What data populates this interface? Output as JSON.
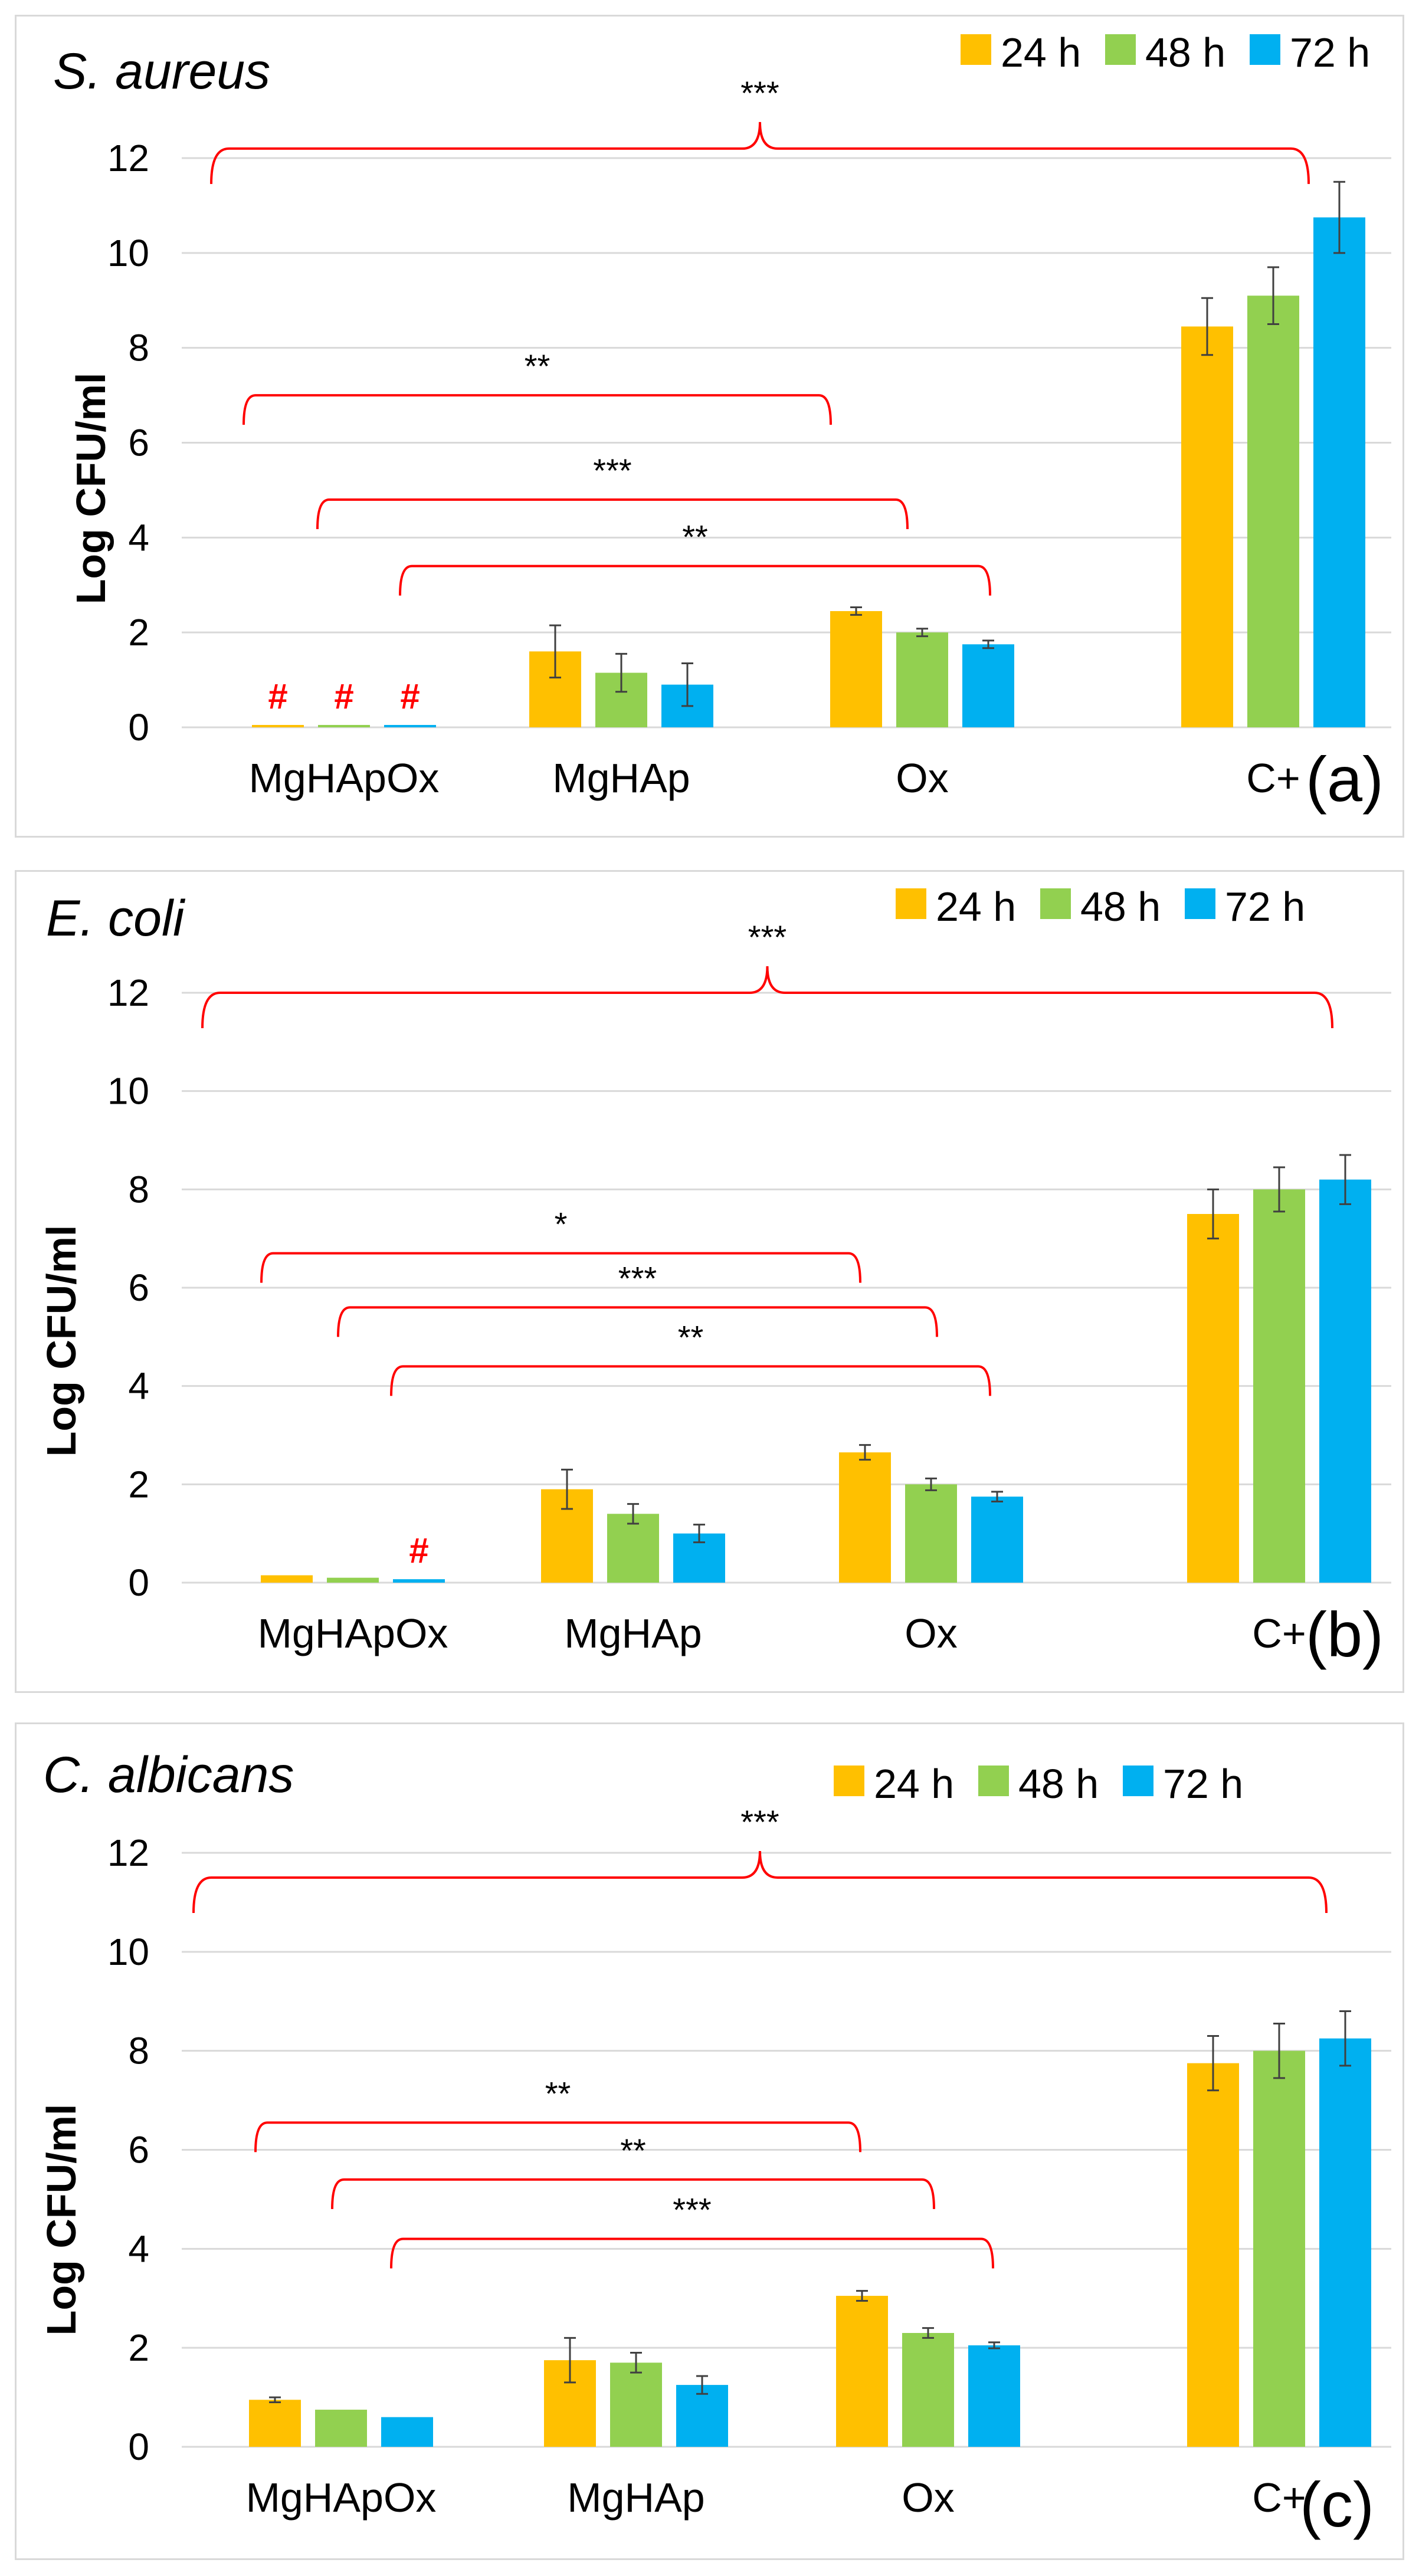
{
  "colors": {
    "24h": "#ffc000",
    "48h": "#92d050",
    "72h": "#00b0f0"
  },
  "legend": [
    "24 h",
    "48 h",
    "72 h"
  ],
  "chart_data": [
    {
      "type": "bar",
      "panel_label": "(a)",
      "title": "S. aureus",
      "ylabel": "Log CFU/ml",
      "xlabel": "",
      "ylim": [
        0,
        12
      ],
      "yticks": [
        "0",
        "2",
        "4",
        "6",
        "8",
        "10",
        "12"
      ],
      "categories": [
        "MgHApOx",
        "MgHAp",
        "Ox",
        "C+"
      ],
      "series": [
        {
          "name": "24 h",
          "values": [
            0.05,
            1.6,
            2.45,
            8.45
          ],
          "errors": [
            0,
            0.55,
            0.08,
            0.6
          ]
        },
        {
          "name": "48 h",
          "values": [
            0.05,
            1.15,
            2.0,
            9.1
          ],
          "errors": [
            0,
            0.4,
            0.08,
            0.6
          ]
        },
        {
          "name": "72 h",
          "values": [
            0.05,
            0.9,
            1.75,
            10.75
          ],
          "errors": [
            0,
            0.45,
            0.08,
            0.75
          ]
        }
      ],
      "hash_marks": [
        {
          "category": 0,
          "series": 0,
          "label": "#"
        },
        {
          "category": 0,
          "series": 1,
          "label": "#"
        },
        {
          "category": 0,
          "series": 2,
          "label": "#"
        }
      ],
      "significance": [
        {
          "label": "***",
          "level": 12.2
        },
        {
          "label": "**",
          "level": 7.0
        },
        {
          "label": "***",
          "level": 4.8
        },
        {
          "label": "**",
          "level": 3.4
        }
      ]
    },
    {
      "type": "bar",
      "panel_label": "(b)",
      "title": "E. coli",
      "ylabel": "Log CFU/ml",
      "xlabel": "",
      "ylim": [
        0,
        12
      ],
      "yticks": [
        "0",
        "2",
        "4",
        "6",
        "8",
        "10",
        "12"
      ],
      "categories": [
        "MgHApOx",
        "MgHAp",
        "Ox",
        "C+"
      ],
      "series": [
        {
          "name": "24 h",
          "values": [
            0.15,
            1.9,
            2.65,
            7.5
          ],
          "errors": [
            0.03,
            0.4,
            0.15,
            0.5
          ]
        },
        {
          "name": "48 h",
          "values": [
            0.1,
            1.4,
            2.0,
            8.0
          ],
          "errors": [
            0.03,
            0.2,
            0.12,
            0.45
          ]
        },
        {
          "name": "72 h",
          "values": [
            0.07,
            1.0,
            1.75,
            8.2
          ],
          "errors": [
            0.03,
            0.18,
            0.1,
            0.5
          ]
        }
      ],
      "hash_marks": [
        {
          "category": 0,
          "series": 2,
          "label": "#"
        }
      ],
      "significance": [
        {
          "label": "***",
          "level": 12.0
        },
        {
          "label": "*",
          "level": 6.7
        },
        {
          "label": "***",
          "level": 5.6
        },
        {
          "label": "**",
          "level": 4.4
        }
      ]
    },
    {
      "type": "bar",
      "panel_label": "(c)",
      "title": "C. albicans",
      "ylabel": "Log CFU/ml",
      "xlabel": "",
      "ylim": [
        0,
        12
      ],
      "yticks": [
        "0",
        "2",
        "4",
        "6",
        "8",
        "10",
        "12"
      ],
      "categories": [
        "MgHApOx",
        "MgHAp",
        "Ox",
        "C+"
      ],
      "series": [
        {
          "name": "24 h",
          "values": [
            0.95,
            1.75,
            3.05,
            7.75
          ],
          "errors": [
            0.05,
            0.45,
            0.1,
            0.55
          ]
        },
        {
          "name": "48 h",
          "values": [
            0.75,
            1.7,
            2.3,
            8.0
          ],
          "errors": [
            0.04,
            0.2,
            0.1,
            0.55
          ]
        },
        {
          "name": "72 h",
          "values": [
            0.6,
            1.25,
            2.05,
            8.25
          ],
          "errors": [
            0.03,
            0.18,
            0.06,
            0.55
          ]
        }
      ],
      "hash_marks": [],
      "significance": [
        {
          "label": "***",
          "level": 11.5
        },
        {
          "label": "**",
          "level": 6.55
        },
        {
          "label": "**",
          "level": 5.4
        },
        {
          "label": "***",
          "level": 4.2
        }
      ]
    }
  ]
}
